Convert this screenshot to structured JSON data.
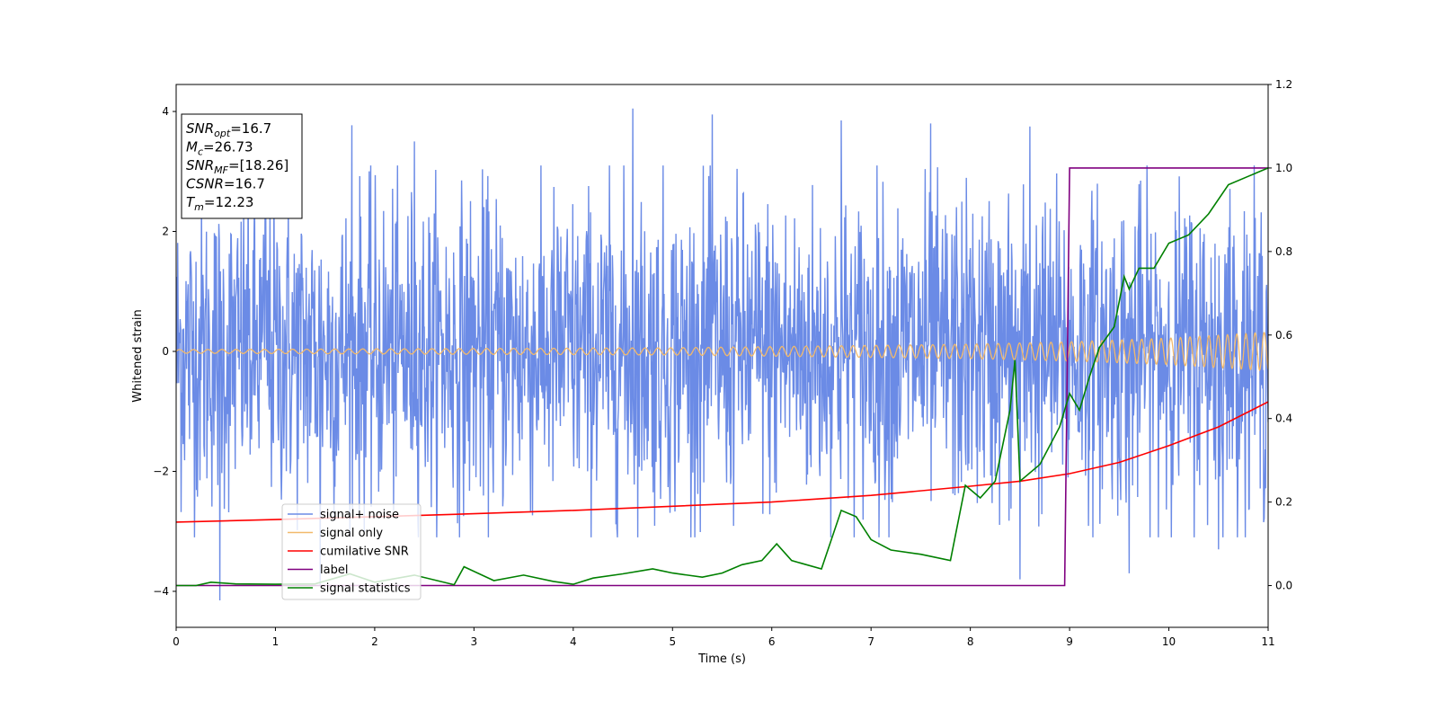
{
  "chart_data": {
    "type": "line",
    "title": "",
    "xlabel": "Time (s)",
    "ylabel": "Whitened strain",
    "y2label": "",
    "xlim": [
      0,
      11
    ],
    "ylim": [
      -4.6,
      4.45
    ],
    "y2lim": [
      -0.1,
      1.2
    ],
    "xticks": [
      0,
      1,
      2,
      3,
      4,
      5,
      6,
      7,
      8,
      9,
      10,
      11
    ],
    "yticks": [
      -4,
      -2,
      0,
      2,
      4
    ],
    "y2ticks": [
      "0.0",
      "0.2",
      "0.4",
      "0.6",
      "0.8",
      "1.0",
      "1.2"
    ],
    "grid": false,
    "legend_position": "lower-left",
    "info_box": [
      {
        "sym": "SNR",
        "sub": "opt",
        "rest": "=16.7"
      },
      {
        "sym": "M",
        "sub": "c",
        "rest": "=26.73"
      },
      {
        "sym": "SNR",
        "sub": "MF",
        "rest": "=[18.26]"
      },
      {
        "sym": "CSNR",
        "sub": "",
        "rest": "=16.7"
      },
      {
        "sym": "T",
        "sub": "m",
        "rest": "=12.23"
      }
    ],
    "series": [
      {
        "name": "signal+ noise",
        "color": "#6b8be6",
        "axis": "left",
        "kind": "noise",
        "amplitude_envelope": [
          [
            0,
            2.6
          ],
          [
            11,
            2.6
          ]
        ],
        "peak_values": [
          [
            0.9,
            3.7
          ],
          [
            1.77,
            3.77
          ],
          [
            2.4,
            3.5
          ],
          [
            4.6,
            4.05
          ],
          [
            5.4,
            3.95
          ],
          [
            6.7,
            3.85
          ],
          [
            7.6,
            3.8
          ],
          [
            8.6,
            3.75
          ],
          [
            0.44,
            -4.15
          ],
          [
            1.45,
            -3.9
          ],
          [
            8.5,
            -3.8
          ],
          [
            9.6,
            -3.7
          ],
          [
            10.5,
            -3.3
          ]
        ]
      },
      {
        "name": "signal only",
        "color": "#f2b96b",
        "axis": "left",
        "kind": "chirp",
        "amplitude_envelope": [
          [
            0,
            0.03
          ],
          [
            5,
            0.06
          ],
          [
            8,
            0.12
          ],
          [
            9,
            0.16
          ],
          [
            10,
            0.22
          ],
          [
            11,
            0.32
          ]
        ]
      },
      {
        "name": "cumilative SNR",
        "color": "#ff0000",
        "axis": "right",
        "points": [
          [
            0,
            0.152
          ],
          [
            1,
            0.158
          ],
          [
            2,
            0.165
          ],
          [
            3,
            0.172
          ],
          [
            4,
            0.18
          ],
          [
            5,
            0.19
          ],
          [
            6,
            0.2
          ],
          [
            7,
            0.216
          ],
          [
            8,
            0.238
          ],
          [
            8.5,
            0.25
          ],
          [
            9,
            0.268
          ],
          [
            9.5,
            0.295
          ],
          [
            10,
            0.335
          ],
          [
            10.5,
            0.38
          ],
          [
            11,
            0.44
          ]
        ]
      },
      {
        "name": "label",
        "color": "#800080",
        "axis": "right",
        "points": [
          [
            0,
            0.0
          ],
          [
            8.95,
            0.0
          ],
          [
            9.0,
            1.0
          ],
          [
            11,
            1.0
          ]
        ]
      },
      {
        "name": "signal statistics",
        "color": "#008000",
        "axis": "right",
        "points": [
          [
            0,
            0.0
          ],
          [
            0.2,
            0.0
          ],
          [
            0.35,
            0.008
          ],
          [
            0.6,
            0.004
          ],
          [
            1.0,
            0.003
          ],
          [
            1.4,
            0.004
          ],
          [
            1.75,
            0.028
          ],
          [
            2.0,
            0.008
          ],
          [
            2.4,
            0.025
          ],
          [
            2.8,
            0.002
          ],
          [
            2.9,
            0.045
          ],
          [
            3.2,
            0.012
          ],
          [
            3.5,
            0.025
          ],
          [
            3.8,
            0.01
          ],
          [
            4.0,
            0.003
          ],
          [
            4.2,
            0.018
          ],
          [
            4.5,
            0.028
          ],
          [
            4.8,
            0.04
          ],
          [
            5.0,
            0.03
          ],
          [
            5.3,
            0.02
          ],
          [
            5.5,
            0.03
          ],
          [
            5.7,
            0.05
          ],
          [
            5.9,
            0.06
          ],
          [
            6.05,
            0.1
          ],
          [
            6.2,
            0.06
          ],
          [
            6.5,
            0.04
          ],
          [
            6.7,
            0.18
          ],
          [
            6.85,
            0.165
          ],
          [
            7.0,
            0.11
          ],
          [
            7.2,
            0.085
          ],
          [
            7.5,
            0.075
          ],
          [
            7.8,
            0.06
          ],
          [
            7.95,
            0.24
          ],
          [
            8.1,
            0.21
          ],
          [
            8.25,
            0.25
          ],
          [
            8.4,
            0.42
          ],
          [
            8.45,
            0.54
          ],
          [
            8.5,
            0.25
          ],
          [
            8.7,
            0.29
          ],
          [
            8.9,
            0.38
          ],
          [
            9.0,
            0.46
          ],
          [
            9.1,
            0.42
          ],
          [
            9.2,
            0.5
          ],
          [
            9.3,
            0.57
          ],
          [
            9.45,
            0.62
          ],
          [
            9.55,
            0.74
          ],
          [
            9.6,
            0.71
          ],
          [
            9.7,
            0.76
          ],
          [
            9.85,
            0.76
          ],
          [
            10.0,
            0.82
          ],
          [
            10.2,
            0.84
          ],
          [
            10.4,
            0.89
          ],
          [
            10.6,
            0.96
          ],
          [
            10.8,
            0.98
          ],
          [
            11.0,
            1.0
          ]
        ]
      }
    ]
  }
}
